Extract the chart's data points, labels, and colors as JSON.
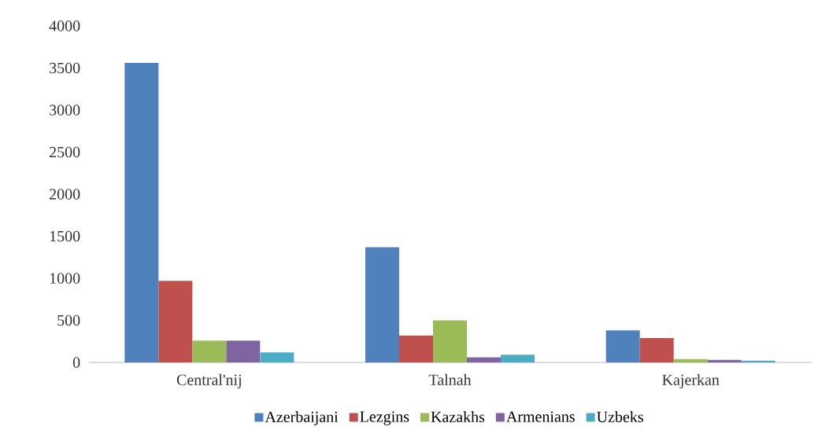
{
  "chart_data": {
    "type": "bar",
    "categories": [
      "Central'nij",
      "Talnah",
      "Kajerkan"
    ],
    "series": [
      {
        "name": "Azerbaijani",
        "color": "#4f81bd",
        "values": [
          3560,
          1370,
          380
        ]
      },
      {
        "name": "Lezgins",
        "color": "#c0504d",
        "values": [
          970,
          320,
          290
        ]
      },
      {
        "name": "Kazakhs",
        "color": "#9bbb59",
        "values": [
          260,
          500,
          40
        ]
      },
      {
        "name": "Armenians",
        "color": "#8064a2",
        "values": [
          260,
          60,
          30
        ]
      },
      {
        "name": "Uzbeks",
        "color": "#4bacc6",
        "values": [
          120,
          90,
          20
        ]
      }
    ],
    "ylim": [
      0,
      4000
    ],
    "yticks": [
      0,
      500,
      1000,
      1500,
      2000,
      2500,
      3000,
      3500,
      4000
    ],
    "grid": false,
    "legend": "bottom"
  }
}
